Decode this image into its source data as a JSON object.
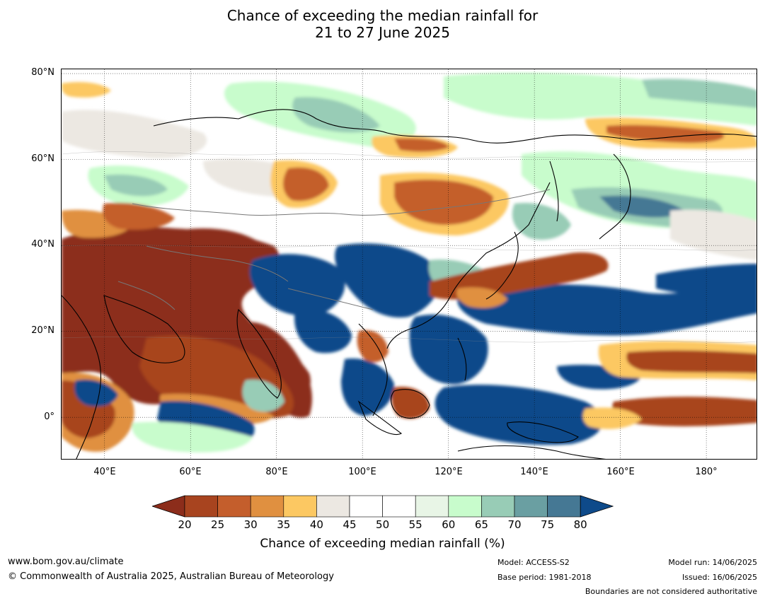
{
  "title": {
    "line1": "Chance of exceeding the median rainfall for",
    "line2": "21 to 27 June 2025"
  },
  "map": {
    "lat_labels": [
      "80°N",
      "60°N",
      "40°N",
      "20°N",
      "0°"
    ],
    "lat_values": [
      80,
      60,
      40,
      20,
      0
    ],
    "lon_labels": [
      "40°E",
      "60°E",
      "80°E",
      "100°E",
      "120°E",
      "140°E",
      "160°E",
      "180°"
    ],
    "lon_values": [
      40,
      60,
      80,
      100,
      120,
      140,
      160,
      180
    ],
    "extent": {
      "lon_min": 30,
      "lon_max": 192,
      "lat_min": -10,
      "lat_max": 81
    }
  },
  "legend": {
    "ticks": [
      "20",
      "25",
      "30",
      "35",
      "40",
      "45",
      "50",
      "55",
      "60",
      "65",
      "70",
      "75",
      "80"
    ],
    "colors": [
      "#8c2d1b",
      "#a8441f",
      "#c45e2c",
      "#e09040",
      "#fcc862",
      "#ece8e2",
      "#ffffff",
      "#ffffff",
      "#e8f5e6",
      "#c8fccc",
      "#98ccb6",
      "#6a9fa2",
      "#457894",
      "#0e4a8a"
    ],
    "label": "Chance of exceeding median rainfall (%)"
  },
  "footer": {
    "url": "www.bom.gov.au/climate",
    "copyright": "© Commonwealth of Australia 2025, Australian Bureau of Meteorology",
    "model": "Model: ACCESS-S2",
    "base_period": "Base period: 1981-2018",
    "model_run": "Model run: 14/06/2025",
    "issued": "Issued: 16/06/2025",
    "disclaimer": "Boundaries are not considered authoritative"
  }
}
